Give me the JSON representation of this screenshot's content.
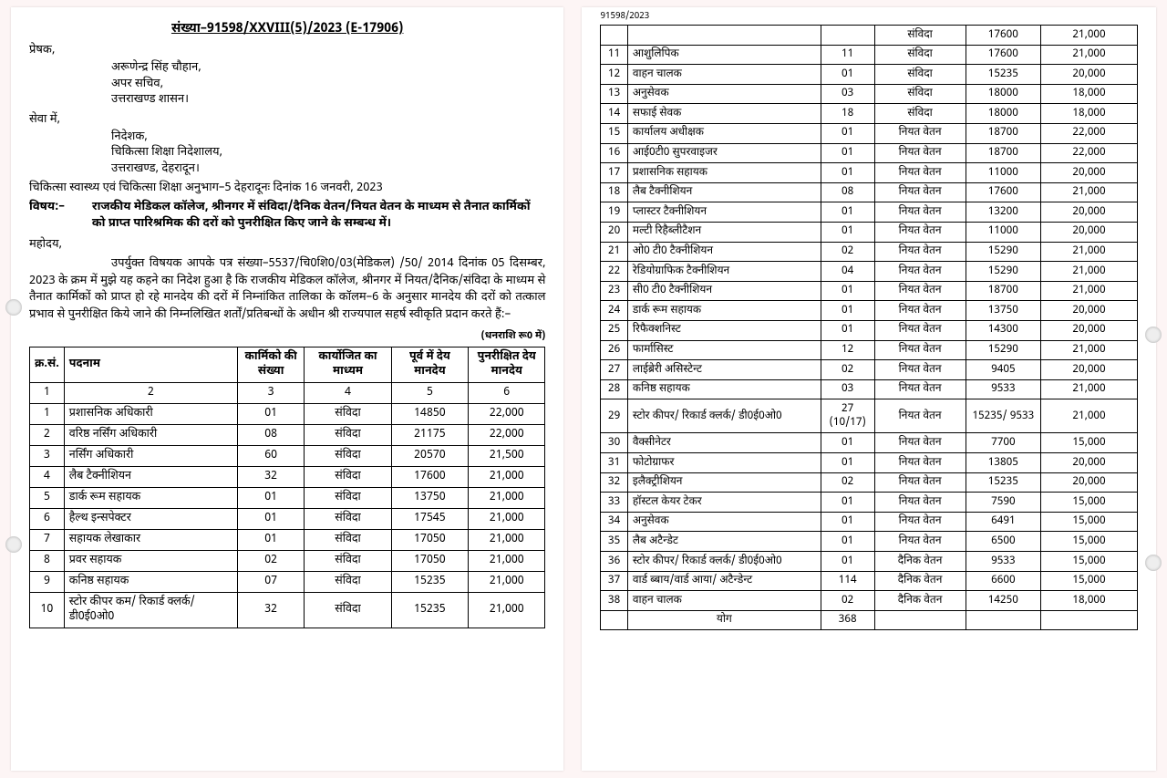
{
  "doc_number": "संख्या–91598/XXVIII(5)/2023 (E-17906)",
  "sender_label": "प्रेषक,",
  "sender": {
    "name": "अरूणेन्द्र सिंह चौहान,",
    "title": "अपर सचिव,",
    "dept": "उत्तराखण्ड शासन।"
  },
  "service_label": "सेवा में,",
  "recipient": {
    "name": "निदेशक,",
    "dept": "चिकित्सा शिक्षा निदेशालय,",
    "place": "उत्तराखण्ड, देहरादून।"
  },
  "dept_line": "चिकित्सा स्वास्थ्य एवं चिकित्सा शिक्षा अनुभाग–5   देहरादूनः दिनांक 16 जनवरी, 2023",
  "subject_label": "विषय:–",
  "subject_text": "राजकीय मेडिकल कॉलेज, श्रीनगर में संविदा/दैनिक वेतन/नियत वेतन के माध्यम से तैनात कार्मिकों को प्राप्त पारिश्रमिक की दरों को पुनरीक्षित किए जाने के सम्बन्ध में।",
  "salutation": "महोदय,",
  "body_text": "उपर्युक्त विषयक आपके पत्र संख्या–5537/चि0शि0/03(मेडिकल) /50/ 2014 दिनांक 05 दिसम्बर, 2023 के क्रम में मुझे यह कहने का निदेश हुआ है कि राजकीय मेडिकल कॉलेज, श्रीनगर में नियत/दैनिक/संविदा के माध्यम से तैनात कार्मिकों को प्राप्त हो रहे मानदेय की दरों में निम्नांकित तालिका के कॉलम–6 के अनुसार मानदेय की दरों को तत्काल प्रभाव से पुनरीक्षित किये जाने की निम्नलिखित शर्तों/प्रतिबन्धों के अधीन श्री राज्यपाल सहर्ष स्वीकृति प्रदान करते हैं:–",
  "amount_note": "(धनराशि रू0 में)",
  "table_headers": {
    "sn": "क्र.सं.",
    "post": "पदनाम",
    "count": "कार्मिको की संख्या",
    "mode": "कार्योजित का माध्यम",
    "prev": "पूर्व में देय मानदेय",
    "new": "पुनरीक्षित देय मानदेय"
  },
  "col_numbers": [
    "1",
    "2",
    "3",
    "4",
    "5",
    "6"
  ],
  "left_rows": [
    {
      "sn": "1",
      "post": "प्रशासनिक अधिकारी",
      "count": "01",
      "mode": "संविदा",
      "prev": "14850",
      "new": "22,000"
    },
    {
      "sn": "2",
      "post": "वरिष्ठ नर्सिंग अधिकारी",
      "count": "08",
      "mode": "संविदा",
      "prev": "21175",
      "new": "22,000"
    },
    {
      "sn": "3",
      "post": "नर्सिंग अधिकारी",
      "count": "60",
      "mode": "संविदा",
      "prev": "20570",
      "new": "21,500"
    },
    {
      "sn": "4",
      "post": "लैब टैक्नीशियन",
      "count": "32",
      "mode": "संविदा",
      "prev": "17600",
      "new": "21,000"
    },
    {
      "sn": "5",
      "post": "डार्क रूम सहायक",
      "count": "01",
      "mode": "संविदा",
      "prev": "13750",
      "new": "21,000"
    },
    {
      "sn": "6",
      "post": "हैल्थ इन्सपेक्टर",
      "count": "01",
      "mode": "संविदा",
      "prev": "17545",
      "new": "21,000"
    },
    {
      "sn": "7",
      "post": "सहायक लेखाकार",
      "count": "01",
      "mode": "संविदा",
      "prev": "17050",
      "new": "21,000"
    },
    {
      "sn": "8",
      "post": "प्रवर सहायक",
      "count": "02",
      "mode": "संविदा",
      "prev": "17050",
      "new": "21,000"
    },
    {
      "sn": "9",
      "post": "कनिष्ठ सहायक",
      "count": "07",
      "mode": "संविदा",
      "prev": "15235",
      "new": "21,000"
    },
    {
      "sn": "10",
      "post": "स्टोर कीपर कम/ रिकार्ड क्लर्क/ डी0ई0ओ0",
      "count": "32",
      "mode": "संविदा",
      "prev": "15235",
      "new": "21,000"
    }
  ],
  "ref_right": "91598/2023",
  "right_top_partial": {
    "mode": "संविदा",
    "prev": "17600",
    "new": "21,000"
  },
  "right_rows": [
    {
      "sn": "11",
      "post": "आशुलिपिक",
      "count": "11",
      "mode": "संविदा",
      "prev": "17600",
      "new": "21,000"
    },
    {
      "sn": "12",
      "post": "वाहन चालक",
      "count": "01",
      "mode": "संविदा",
      "prev": "15235",
      "new": "20,000"
    },
    {
      "sn": "13",
      "post": "अनुसेवक",
      "count": "03",
      "mode": "संविदा",
      "prev": "18000",
      "new": "18,000"
    },
    {
      "sn": "14",
      "post": "सफाई सेवक",
      "count": "18",
      "mode": "संविदा",
      "prev": "18000",
      "new": "18,000"
    },
    {
      "sn": "15",
      "post": "कार्यालय अधीक्षक",
      "count": "01",
      "mode": "नियत वेतन",
      "prev": "18700",
      "new": "22,000"
    },
    {
      "sn": "16",
      "post": "आई0टी0 सुपरवाइजर",
      "count": "01",
      "mode": "नियत वेतन",
      "prev": "18700",
      "new": "22,000"
    },
    {
      "sn": "17",
      "post": "प्रशासनिक सहायक",
      "count": "01",
      "mode": "नियत वेतन",
      "prev": "11000",
      "new": "20,000"
    },
    {
      "sn": "18",
      "post": "लैब टैक्नीशियन",
      "count": "08",
      "mode": "नियत वेतन",
      "prev": "17600",
      "new": "21,000"
    },
    {
      "sn": "19",
      "post": "प्लास्टर टैक्नीशियन",
      "count": "01",
      "mode": "नियत वेतन",
      "prev": "13200",
      "new": "20,000"
    },
    {
      "sn": "20",
      "post": "मल्टी रिहैब्लीटैशन",
      "count": "01",
      "mode": "नियत वेतन",
      "prev": "11000",
      "new": "20,000"
    },
    {
      "sn": "21",
      "post": "ओ0 टी0 टैक्नीशियन",
      "count": "02",
      "mode": "नियत वेतन",
      "prev": "15290",
      "new": "21,000"
    },
    {
      "sn": "22",
      "post": "रेडियोग्राफिक टैक्नीशियन",
      "count": "04",
      "mode": "नियत वेतन",
      "prev": "15290",
      "new": "21,000"
    },
    {
      "sn": "23",
      "post": "सी0 टी0 टैक्नीशियन",
      "count": "01",
      "mode": "नियत वेतन",
      "prev": "18700",
      "new": "21,000"
    },
    {
      "sn": "24",
      "post": "डार्क रूम सहायक",
      "count": "01",
      "mode": "नियत वेतन",
      "prev": "13750",
      "new": "20,000"
    },
    {
      "sn": "25",
      "post": "रिफैक्शनिस्ट",
      "count": "01",
      "mode": "नियत वेतन",
      "prev": "14300",
      "new": "20,000"
    },
    {
      "sn": "26",
      "post": "फार्मासिस्ट",
      "count": "12",
      "mode": "नियत वेतन",
      "prev": "15290",
      "new": "21,000"
    },
    {
      "sn": "27",
      "post": "लाईब्रेरी असिस्टेन्ट",
      "count": "02",
      "mode": "नियत वेतन",
      "prev": "9405",
      "new": "20,000"
    },
    {
      "sn": "28",
      "post": "कनिष्ठ सहायक",
      "count": "03",
      "mode": "नियत वेतन",
      "prev": "9533",
      "new": "21,000"
    },
    {
      "sn": "29",
      "post": "स्टोर कीपर/ रिकार्ड क्लर्क/ डी0ई0ओ0",
      "count": "27 (10/17)",
      "mode": "नियत वेतन",
      "prev": "15235/ 9533",
      "new": "21,000"
    },
    {
      "sn": "30",
      "post": "वैक्सीनेटर",
      "count": "01",
      "mode": "नियत वेतन",
      "prev": "7700",
      "new": "15,000"
    },
    {
      "sn": "31",
      "post": "फोटोग्राफर",
      "count": "01",
      "mode": "नियत वेतन",
      "prev": "13805",
      "new": "20,000"
    },
    {
      "sn": "32",
      "post": "इलैक्ट्रीशियन",
      "count": "02",
      "mode": "नियत वेतन",
      "prev": "15235",
      "new": "20,000"
    },
    {
      "sn": "33",
      "post": "हॉस्टल केयर टेकर",
      "count": "01",
      "mode": "नियत वेतन",
      "prev": "7590",
      "new": "15,000"
    },
    {
      "sn": "34",
      "post": "अनुसेवक",
      "count": "01",
      "mode": "नियत वेतन",
      "prev": "6491",
      "new": "15,000"
    },
    {
      "sn": "35",
      "post": "लैब अटैन्डेट",
      "count": "01",
      "mode": "नियत वेतन",
      "prev": "6500",
      "new": "15,000"
    },
    {
      "sn": "36",
      "post": "स्टोर कीपर/ रिकार्ड क्लर्क/ डी0ई0ओ0",
      "count": "01",
      "mode": "दैनिक वेतन",
      "prev": "9533",
      "new": "15,000"
    },
    {
      "sn": "37",
      "post": "वार्ड ब्बाय/वार्ड आया/ अटैन्डेन्ट",
      "count": "114",
      "mode": "दैनिक वेतन",
      "prev": "6600",
      "new": "15,000"
    },
    {
      "sn": "38",
      "post": "वाहन चालक",
      "count": "02",
      "mode": "दैनिक वेतन",
      "prev": "14250",
      "new": "18,000"
    }
  ],
  "total_label": "योग",
  "total_count": "368"
}
